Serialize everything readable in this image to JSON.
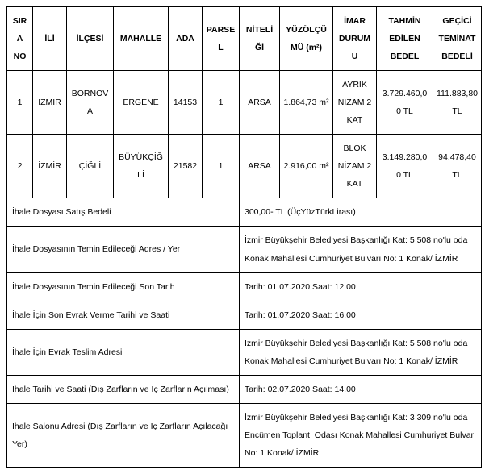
{
  "table1": {
    "headers": {
      "sira": "SIRA NO",
      "ili": "İLİ",
      "ilcesi": "İLÇESİ",
      "mahalle": "MAHALLE",
      "ada": "ADA",
      "parsel": "PARSEL",
      "niteligi": "NİTELİĞİ",
      "yuzolcumu": "YÜZÖLÇÜMÜ (m²)",
      "imar": "İMAR DURUMU",
      "tahmin": "TAHMİN EDİLEN BEDEL",
      "teminat": "GEÇİCİ TEMİNAT BEDELİ"
    },
    "rows": [
      {
        "sira": "1",
        "ili": "İZMİR",
        "ilcesi": "BORNOVA",
        "mahalle": "ERGENE",
        "ada": "14153",
        "parsel": "1",
        "niteligi": "ARSA",
        "yuzolcumu": "1.864,73 m²",
        "imar": "AYRIK NİZAM 2 KAT",
        "tahmin": "3.729.460,00 TL",
        "teminat": "111.883,80 TL"
      },
      {
        "sira": "2",
        "ili": "İZMİR",
        "ilcesi": "ÇİĞLİ",
        "mahalle": "BÜYÜKÇİĞLİ",
        "ada": "21582",
        "parsel": "1",
        "niteligi": "ARSA",
        "yuzolcumu": "2.916,00 m²",
        "imar": "BLOK NİZAM 2 KAT",
        "tahmin": "3.149.280,00 TL",
        "teminat": "94.478,40 TL"
      }
    ]
  },
  "info": [
    {
      "label": "İhale Dosyası Satış Bedeli",
      "value": "300,00- TL (ÜçYüzTürkLirası)"
    },
    {
      "label": "İhale Dosyasının Temin Edileceği Adres / Yer",
      "value": "İzmir Büyükşehir Belediyesi Başkanlığı Kat: 5   508 no'lu oda Konak Mahallesi Cumhuriyet Bulvarı No: 1 Konak/ İZMİR"
    },
    {
      "label": "İhale Dosyasının Temin Edileceği Son Tarih",
      "value": "Tarih: 01.07.2020 Saat: 12.00"
    },
    {
      "label": "İhale İçin Son Evrak Verme Tarihi ve Saati",
      "value": "Tarih: 01.07.2020 Saat: 16.00"
    },
    {
      "label": "İhale İçin Evrak Teslim Adresi",
      "value": "İzmir Büyükşehir Belediyesi Başkanlığı Kat: 5   508 no'lu oda Konak Mahallesi Cumhuriyet Bulvarı No: 1 Konak/ İZMİR"
    },
    {
      "label": "İhale Tarihi ve Saati (Dış Zarfların ve İç Zarfların Açılması)",
      "value": "Tarih: 02.07.2020 Saat: 14.00"
    },
    {
      "label": "İhale Salonu Adresi (Dış Zarfların ve İç Zarfların Açılacağı Yer)",
      "value": "İzmir Büyükşehir Belediyesi Başkanlığı Kat: 3   309 no'lu oda Encümen Toplantı Odası Konak Mahallesi Cumhuriyet Bulvarı No: 1 Konak/ İZMİR"
    }
  ],
  "colwidths": {
    "sira": "32",
    "ili": "42",
    "ilcesi": "58",
    "mahalle": "68",
    "ada": "42",
    "parsel": "46",
    "niteligi": "50",
    "yuzolcumu": "66",
    "imar": "54",
    "tahmin": "70",
    "teminat": "60"
  }
}
